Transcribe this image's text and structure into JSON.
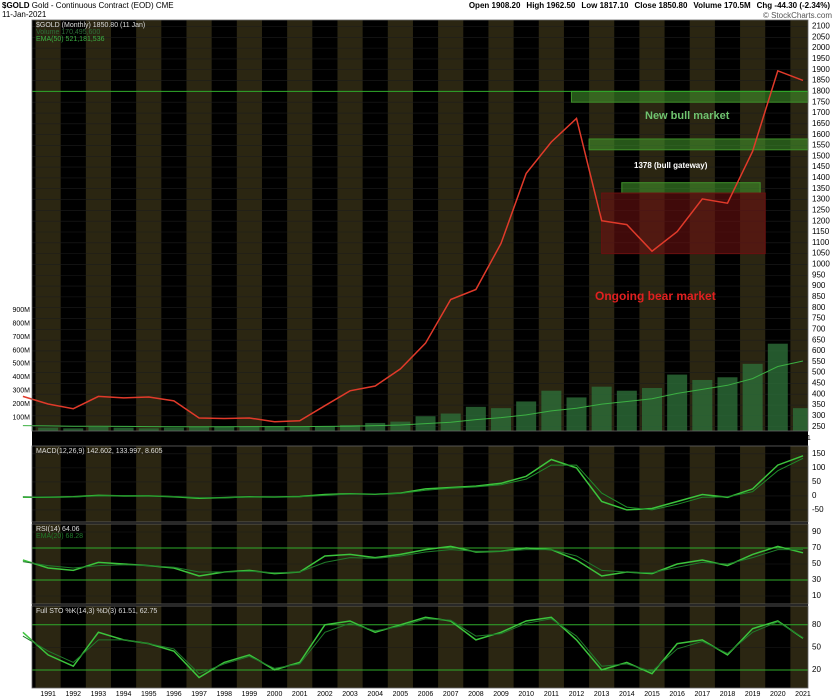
{
  "header": {
    "symbol": "$GOLD",
    "title": "Gold - Continuous Contract (EOD)",
    "exchange": "CME",
    "date": "11-Jan-2021",
    "quote": [
      "Open 1908.20",
      "High 1962.50",
      "Low 1817.10",
      "Close 1850.80",
      "Volume 170.5M",
      "Chg -44.30 (-2.34%)"
    ],
    "copyright": "© StockCharts.com"
  },
  "chart_data": [
    {
      "type": "line",
      "annotations": [
        "New bull market",
        "1378 (bull gateway)",
        "Ongoing bear market"
      ],
      "x": [
        1990,
        1991,
        1992,
        1993,
        1994,
        1995,
        1996,
        1997,
        1998,
        1999,
        2000,
        2001,
        2002,
        2003,
        2004,
        2005,
        2006,
        2007,
        2008,
        2009,
        2010,
        2011,
        2012,
        2013,
        2014,
        2015,
        2016,
        2017,
        2018,
        2019,
        2020,
        2021
      ],
      "xlim": [
        1990.36,
        2021.2
      ],
      "xticks": [
        1991,
        1992,
        1993,
        1994,
        1995,
        1996,
        1997,
        1998,
        1999,
        2000,
        2001,
        2002,
        2003,
        2004,
        2005,
        2006,
        2007,
        2008,
        2009,
        2010,
        2011,
        2012,
        2013,
        2014,
        2015,
        2016,
        2017,
        2018,
        2019,
        2020,
        2021
      ],
      "ylim": [
        230,
        2130
      ],
      "yticks": [
        250,
        300,
        350,
        400,
        450,
        500,
        550,
        600,
        650,
        700,
        750,
        800,
        850,
        900,
        950,
        1000,
        1050,
        1100,
        1150,
        1200,
        1250,
        1300,
        1350,
        1400,
        1450,
        1500,
        1550,
        1600,
        1650,
        1700,
        1750,
        1800,
        1850,
        1900,
        1950,
        2000,
        2050,
        2100
      ],
      "y2lim": [
        0,
        3060000000
      ],
      "y2ticks": [
        {
          "value": 100000000,
          "label": "100M"
        },
        {
          "value": 200000000,
          "label": "200M"
        },
        {
          "value": 300000000,
          "label": "300M"
        },
        {
          "value": 400000000,
          "label": "400M"
        },
        {
          "value": 500000000,
          "label": "500M"
        },
        {
          "value": 600000000,
          "label": "600M"
        },
        {
          "value": 700000000,
          "label": "700M"
        },
        {
          "value": 800000000,
          "label": "800M"
        },
        {
          "value": 900000000,
          "label": "900M"
        }
      ],
      "hlines": [
        1800
      ],
      "zones": [
        {
          "x": [
            2011.8,
            2021.2
          ],
          "y": [
            1750,
            1800
          ],
          "color": "#3f8f2a"
        },
        {
          "x": [
            2012.5,
            2021.2
          ],
          "y": [
            1530,
            1580
          ],
          "color": "#3f8f2a"
        },
        {
          "x": [
            2013.8,
            2019.3
          ],
          "y": [
            1330,
            1378
          ],
          "color": "#3f8f2a"
        },
        {
          "x": [
            2013,
            2019.5
          ],
          "y": [
            1050,
            1330
          ],
          "color": "#6a1010"
        }
      ],
      "series": [
        {
          "name": "$GOLD (Monthly) 1850.80 (11 Jan)",
          "color": "#e03a2a",
          "values": [
            390,
            355,
            333,
            390,
            383,
            387,
            369,
            290,
            288,
            290,
            273,
            277,
            347,
            416,
            438,
            517,
            636,
            838,
            884,
            1097,
            1421,
            1566,
            1675,
            1202,
            1184,
            1061,
            1152,
            1303,
            1283,
            1523,
            1895,
            1851
          ]
        },
        {
          "name": "Volume 170,495,600",
          "type": "bar",
          "axis": "y2",
          "color": "#2d6e38",
          "values": [
            30000000,
            25000000,
            20000000,
            30000000,
            25000000,
            20000000,
            25000000,
            30000000,
            30000000,
            35000000,
            30000000,
            30000000,
            35000000,
            45000000,
            60000000,
            70000000,
            110000000,
            130000000,
            180000000,
            170000000,
            220000000,
            300000000,
            250000000,
            330000000,
            300000000,
            320000000,
            420000000,
            380000000,
            400000000,
            500000000,
            650000000,
            170000000
          ]
        },
        {
          "name": "EMA(50) 521,181,536",
          "axis": "y2",
          "color": "#3cb043",
          "values": [
            40000000,
            38000000,
            36000000,
            35000000,
            34000000,
            33000000,
            32000000,
            32000000,
            32000000,
            33000000,
            33000000,
            33000000,
            34000000,
            36000000,
            40000000,
            45000000,
            55000000,
            65000000,
            85000000,
            100000000,
            120000000,
            150000000,
            170000000,
            200000000,
            220000000,
            240000000,
            280000000,
            310000000,
            340000000,
            390000000,
            480000000,
            521000000
          ]
        }
      ]
    },
    {
      "type": "line",
      "ylim": [
        -93,
        178
      ],
      "yticks": [
        -50,
        0,
        50,
        100,
        150
      ],
      "series": [
        {
          "name": "MACD(12,26,9) 142.602, 133.997, 8.605",
          "color": "#3cc43c",
          "values": [
            -5,
            -5,
            -3,
            2,
            0,
            0,
            -3,
            -8,
            -6,
            -3,
            -4,
            -2,
            5,
            8,
            6,
            10,
            25,
            30,
            35,
            45,
            70,
            130,
            100,
            -20,
            -50,
            -45,
            -20,
            5,
            -5,
            25,
            110,
            143
          ]
        },
        {
          "color": "#1f8a2a",
          "values": [
            -3,
            -5,
            -4,
            0,
            1,
            0,
            -2,
            -6,
            -7,
            -4,
            -4,
            -3,
            2,
            7,
            7,
            9,
            20,
            27,
            32,
            40,
            60,
            110,
            110,
            10,
            -40,
            -50,
            -30,
            -5,
            -3,
            15,
            90,
            134
          ]
        }
      ]
    },
    {
      "type": "line",
      "ylim": [
        0,
        100
      ],
      "yticks": [
        10,
        30,
        50,
        70,
        90
      ],
      "hlines": [
        70,
        30
      ],
      "series": [
        {
          "name": "RSI(14) 64.06",
          "color": "#3cc43c",
          "values": [
            55,
            45,
            42,
            52,
            50,
            48,
            45,
            35,
            40,
            42,
            38,
            40,
            60,
            62,
            58,
            62,
            68,
            72,
            65,
            66,
            70,
            68,
            55,
            35,
            40,
            38,
            50,
            55,
            48,
            62,
            72,
            64
          ]
        },
        {
          "name": "EMA(20) 68.28",
          "color": "#1f7a2a",
          "values": [
            53,
            48,
            45,
            48,
            49,
            48,
            46,
            40,
            40,
            41,
            39,
            40,
            52,
            58,
            57,
            60,
            65,
            68,
            66,
            66,
            68,
            68,
            60,
            42,
            40,
            39,
            46,
            52,
            50,
            58,
            68,
            68
          ]
        }
      ]
    },
    {
      "type": "line",
      "ylim": [
        -4,
        105
      ],
      "yticks": [
        20,
        50,
        80
      ],
      "hlines": [
        80,
        20
      ],
      "series": [
        {
          "name": "Full STO %K(14,3) %D(3) 61.51, 62.75",
          "color": "#3cc43c",
          "values": [
            70,
            40,
            25,
            70,
            60,
            55,
            45,
            10,
            30,
            40,
            20,
            30,
            80,
            85,
            70,
            80,
            90,
            85,
            60,
            70,
            85,
            90,
            60,
            20,
            30,
            15,
            55,
            60,
            40,
            75,
            85,
            62
          ]
        },
        {
          "color": "#1f7a2a",
          "values": [
            65,
            45,
            30,
            60,
            60,
            55,
            48,
            15,
            28,
            38,
            22,
            28,
            70,
            82,
            72,
            78,
            88,
            86,
            65,
            68,
            82,
            88,
            65,
            25,
            28,
            18,
            48,
            58,
            42,
            70,
            84,
            63
          ]
        }
      ]
    }
  ]
}
